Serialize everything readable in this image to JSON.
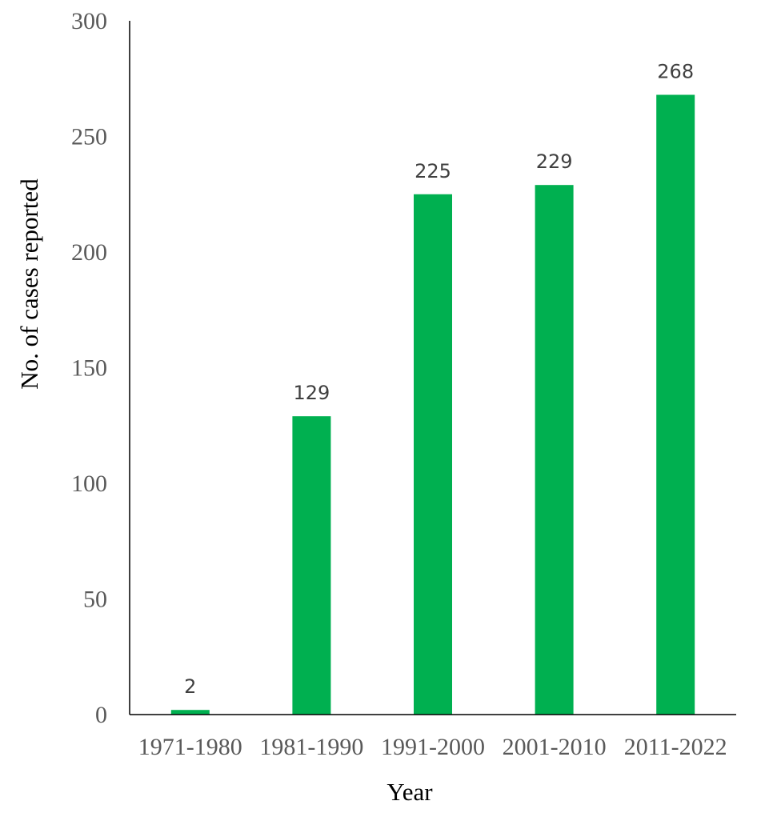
{
  "chart_data": {
    "type": "bar",
    "title": "",
    "xlabel": "Year",
    "ylabel": "No. of cases reported",
    "categories": [
      "1971-1980",
      "1981-1990",
      "1991-2000",
      "2001-2010",
      "2011-2022"
    ],
    "values": [
      2,
      129,
      225,
      229,
      268
    ],
    "data_labels": [
      "2",
      "129",
      "225",
      "229",
      "268"
    ],
    "ylim": [
      0,
      300
    ],
    "yticks": [
      0,
      50,
      100,
      150,
      200,
      250,
      300
    ],
    "ytick_labels": [
      "0",
      "50",
      "100",
      "150",
      "200",
      "250",
      "300"
    ],
    "grid": false,
    "legend": "none",
    "bar_color": "#00B050"
  }
}
